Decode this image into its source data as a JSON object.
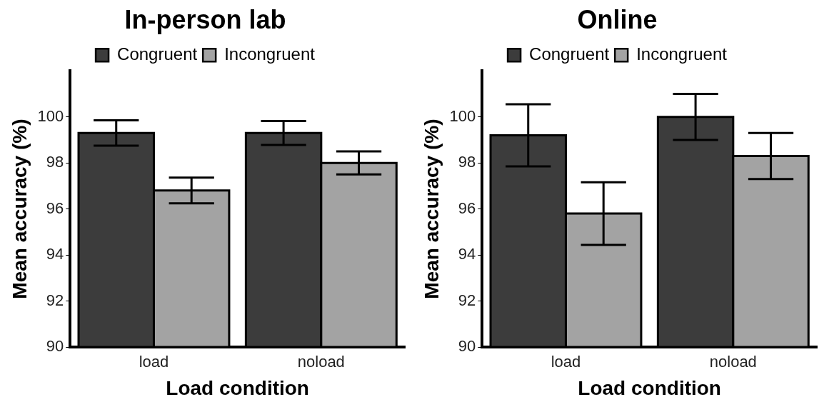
{
  "chart_data": [
    {
      "type": "bar",
      "title": "In-person lab",
      "xlabel": "Load condition",
      "ylabel": "Mean accuracy (%)",
      "categories": [
        "load",
        "noload"
      ],
      "series": [
        {
          "name": "Congruent",
          "color": "#3c3c3c",
          "values": [
            99.3,
            99.3
          ],
          "errors": [
            0.55,
            0.52
          ]
        },
        {
          "name": "Incongruent",
          "color": "#a3a3a3",
          "values": [
            96.8,
            98.0
          ],
          "errors": [
            0.56,
            0.5
          ]
        }
      ],
      "ylim": [
        90,
        102
      ],
      "yticks": [
        90,
        92,
        94,
        96,
        98,
        100
      ],
      "grid": false,
      "legend": "top"
    },
    {
      "type": "bar",
      "title": "Online",
      "xlabel": "Load condition",
      "ylabel": "Mean accuracy (%)",
      "categories": [
        "load",
        "noload"
      ],
      "series": [
        {
          "name": "Congruent",
          "color": "#3c3c3c",
          "values": [
            99.2,
            100.0
          ],
          "errors": [
            1.35,
            1.0
          ]
        },
        {
          "name": "Incongruent",
          "color": "#a3a3a3",
          "values": [
            95.8,
            98.3
          ],
          "errors": [
            1.36,
            1.0
          ]
        }
      ],
      "ylim": [
        90,
        102
      ],
      "yticks": [
        90,
        92,
        94,
        96,
        98,
        100
      ],
      "grid": false,
      "legend": "top"
    }
  ]
}
